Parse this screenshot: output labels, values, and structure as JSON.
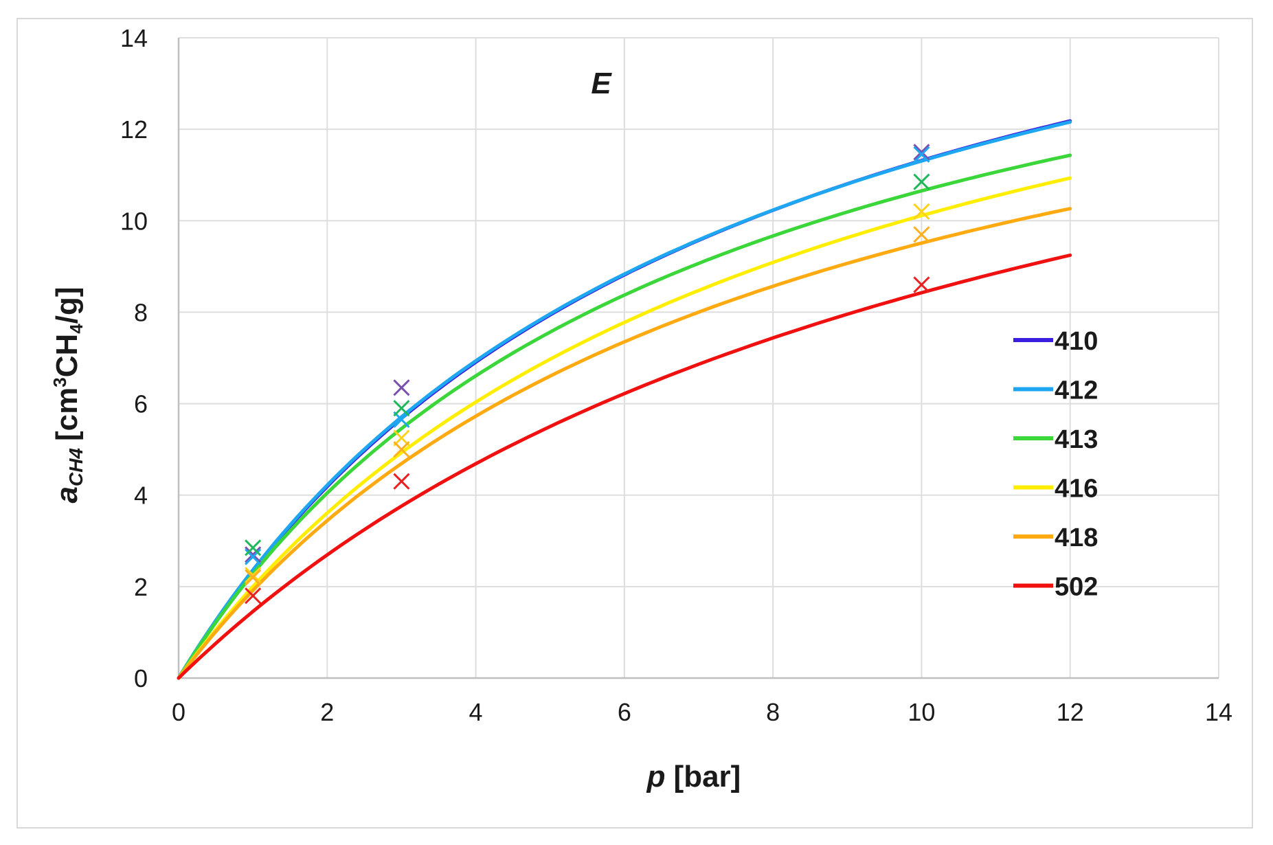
{
  "chart_data": {
    "type": "line",
    "title": "",
    "panel_label": "E",
    "xlabel": {
      "var": "p",
      "unit": "[bar]"
    },
    "ylabel": {
      "var": "a",
      "sub": "CH4",
      "unit_pre": "[cm",
      "sup": "3",
      "unit_mid": "CH",
      "sub2": "4",
      "unit_post": "/g]"
    },
    "xlim": [
      0,
      14
    ],
    "ylim": [
      0,
      14
    ],
    "xticks": [
      0,
      2,
      4,
      6,
      8,
      10,
      12,
      14
    ],
    "yticks": [
      0,
      2,
      4,
      6,
      8,
      10,
      12,
      14
    ],
    "grid": "horizontal-and-vertical",
    "legend_position": "right",
    "series": [
      {
        "name": "410",
        "color": "#3a1fe0",
        "marker_color": "#7a4fb0",
        "fit": {
          "qmax": 19.7,
          "b": 0.135
        },
        "points": [
          [
            1,
            2.7
          ],
          [
            3,
            6.35
          ],
          [
            10,
            11.5
          ]
        ]
      },
      {
        "name": "412",
        "color": "#1ea7f0",
        "marker_color": "#1ea7f0",
        "fit": {
          "qmax": 19.5,
          "b": 0.138
        },
        "points": [
          [
            1,
            2.65
          ],
          [
            3,
            5.65
          ],
          [
            10,
            11.45
          ]
        ]
      },
      {
        "name": "413",
        "color": "#3ad63a",
        "marker_color": "#1fb85a",
        "fit": {
          "qmax": 18.0,
          "b": 0.145
        },
        "points": [
          [
            1,
            2.85
          ],
          [
            3,
            5.9
          ],
          [
            10,
            10.85
          ]
        ]
      },
      {
        "name": "416",
        "color": "#ffee00",
        "marker_color": "#ffd21a",
        "fit": {
          "qmax": 18.4,
          "b": 0.122
        },
        "points": [
          [
            1,
            2.25
          ],
          [
            3,
            5.25
          ],
          [
            10,
            10.2
          ]
        ]
      },
      {
        "name": "418",
        "color": "#ffaa10",
        "marker_color": "#ffb020",
        "fit": {
          "qmax": 17.0,
          "b": 0.127
        },
        "points": [
          [
            1,
            2.2
          ],
          [
            3,
            5.0
          ],
          [
            10,
            9.7
          ]
        ]
      },
      {
        "name": "502",
        "color": "#f01010",
        "marker_color": "#e82020",
        "fit": {
          "qmax": 18.0,
          "b": 0.088
        },
        "points": [
          [
            1,
            1.8
          ],
          [
            3,
            4.3
          ],
          [
            10,
            8.6
          ]
        ]
      }
    ]
  }
}
